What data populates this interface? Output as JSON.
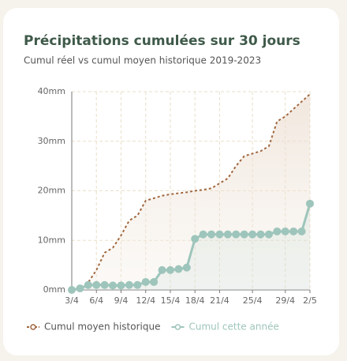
{
  "chart_data": {
    "type": "line",
    "title": "Précipitations cumulées sur 30 jours",
    "subtitle": "Cumul réel vs cumul moyen historique 2019-2023",
    "categories": [
      "3/4",
      null,
      null,
      "6/4",
      null,
      null,
      "9/4",
      null,
      null,
      "12/4",
      null,
      null,
      "15/4",
      null,
      null,
      "18/4",
      null,
      null,
      "21/4",
      null,
      null,
      null,
      "25/4",
      null,
      null,
      null,
      "29/4",
      null,
      null,
      "2/5"
    ],
    "series": [
      {
        "name": "Cumul moyen historique",
        "color": "#a0673f",
        "values": [
          0,
          0.5,
          1.5,
          4,
          7.5,
          8.5,
          11,
          14,
          15,
          18,
          18.5,
          19,
          19.3,
          19.5,
          19.7,
          20,
          20.2,
          20.5,
          21.5,
          22.5,
          25,
          27,
          27.5,
          28,
          29,
          34,
          35,
          36.5,
          38,
          39.5
        ]
      },
      {
        "name": "Cumul cette année",
        "color": "#9ec5bb",
        "values": [
          0,
          0.3,
          1,
          1,
          1,
          0.9,
          0.9,
          1,
          1,
          1.6,
          1.6,
          4,
          4,
          4.2,
          4.5,
          10.3,
          11.2,
          11.2,
          11.2,
          11.2,
          11.2,
          11.2,
          11.2,
          11.2,
          11.2,
          11.8,
          11.8,
          11.8,
          11.8,
          17.4
        ]
      }
    ],
    "ylim": [
      0,
      40
    ],
    "yticks": [
      {
        "value": 0,
        "label": "0mm"
      },
      {
        "value": 10,
        "label": "10mm"
      },
      {
        "value": 20,
        "label": "20mm"
      },
      {
        "value": 30,
        "label": "30mm"
      },
      {
        "value": 40,
        "label": "40mm"
      }
    ],
    "grid": true,
    "legend": "bottom"
  }
}
